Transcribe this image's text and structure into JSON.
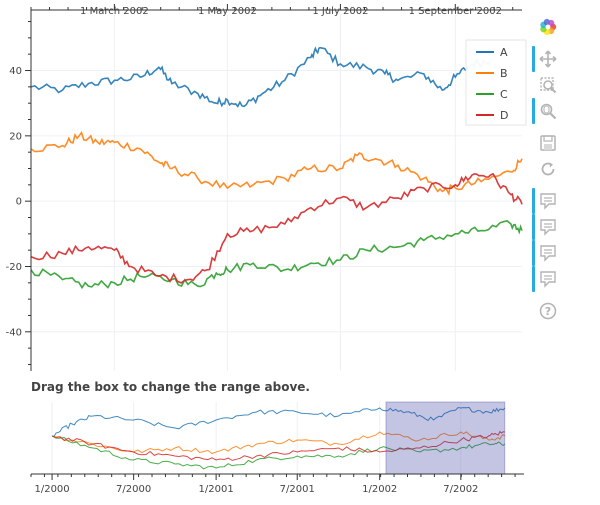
{
  "chart_data": [
    {
      "type": "line",
      "title": "",
      "x_range": [
        "2002-01-15",
        "2002-10-07"
      ],
      "ylim": [
        -52,
        57
      ],
      "x_ticks": [
        "2002-03-01",
        "2002-05-01",
        "2002-07-01",
        "2002-09-01"
      ],
      "x_tick_labels": [
        "1 March 2002",
        "1 May 2002",
        "1 July 2002",
        "1 September 2002"
      ],
      "x_axis_position": "top",
      "y_ticks": [
        -40,
        -20,
        0,
        20,
        40
      ],
      "y_tick_labels": [
        "-40",
        "-20",
        "0",
        "20",
        "40"
      ],
      "grid": true,
      "legend_position": "top-right",
      "series": [
        {
          "name": "A",
          "color": "#1f77b4",
          "points": [
            [
              "2002-01-15",
              35
            ],
            [
              "2002-02-01",
              34
            ],
            [
              "2002-02-15",
              36
            ],
            [
              "2002-03-01",
              37
            ],
            [
              "2002-03-15",
              38
            ],
            [
              "2002-03-25",
              41
            ],
            [
              "2002-04-01",
              36
            ],
            [
              "2002-04-15",
              33
            ],
            [
              "2002-04-25",
              30
            ],
            [
              "2002-05-01",
              31
            ],
            [
              "2002-05-10",
              29
            ],
            [
              "2002-05-20",
              33
            ],
            [
              "2002-06-01",
              37
            ],
            [
              "2002-06-15",
              44
            ],
            [
              "2002-06-20",
              47
            ],
            [
              "2002-07-01",
              42
            ],
            [
              "2002-07-15",
              41
            ],
            [
              "2002-07-25",
              39
            ],
            [
              "2002-08-01",
              37
            ],
            [
              "2002-08-15",
              39
            ],
            [
              "2002-08-25",
              34
            ],
            [
              "2002-09-01",
              38
            ],
            [
              "2002-09-10",
              42
            ],
            [
              "2002-09-20",
              43
            ]
          ]
        },
        {
          "name": "B",
          "color": "#ff7f0e",
          "points": [
            [
              "2002-01-15",
              16
            ],
            [
              "2002-02-01",
              17
            ],
            [
              "2002-02-10",
              20
            ],
            [
              "2002-02-20",
              18
            ],
            [
              "2002-03-01",
              18
            ],
            [
              "2002-03-15",
              16
            ],
            [
              "2002-03-25",
              12
            ],
            [
              "2002-04-01",
              10
            ],
            [
              "2002-04-15",
              7
            ],
            [
              "2002-05-01",
              4
            ],
            [
              "2002-05-15",
              5
            ],
            [
              "2002-06-01",
              7
            ],
            [
              "2002-06-15",
              10
            ],
            [
              "2002-07-01",
              10
            ],
            [
              "2002-07-10",
              14
            ],
            [
              "2002-07-20",
              13
            ],
            [
              "2002-08-01",
              11
            ],
            [
              "2002-08-15",
              7
            ],
            [
              "2002-08-25",
              3
            ],
            [
              "2002-09-01",
              4
            ],
            [
              "2002-09-15",
              6
            ],
            [
              "2002-10-01",
              9
            ],
            [
              "2002-10-07",
              13
            ]
          ]
        },
        {
          "name": "C",
          "color": "#2ca02c",
          "points": [
            [
              "2002-01-15",
              -21
            ],
            [
              "2002-02-01",
              -24
            ],
            [
              "2002-02-15",
              -26
            ],
            [
              "2002-03-01",
              -25
            ],
            [
              "2002-03-15",
              -23
            ],
            [
              "2002-04-01",
              -24
            ],
            [
              "2002-04-15",
              -26
            ],
            [
              "2002-04-25",
              -22
            ],
            [
              "2002-05-01",
              -21
            ],
            [
              "2002-05-15",
              -19
            ],
            [
              "2002-06-01",
              -21
            ],
            [
              "2002-06-15",
              -19
            ],
            [
              "2002-07-01",
              -18
            ],
            [
              "2002-07-15",
              -15
            ],
            [
              "2002-08-01",
              -14
            ],
            [
              "2002-08-15",
              -12
            ],
            [
              "2002-09-01",
              -10
            ],
            [
              "2002-09-15",
              -9
            ],
            [
              "2002-10-01",
              -7
            ],
            [
              "2002-10-07",
              -9
            ]
          ]
        },
        {
          "name": "D",
          "color": "#d62728",
          "points": [
            [
              "2002-01-15",
              -17
            ],
            [
              "2002-02-01",
              -16
            ],
            [
              "2002-02-15",
              -14
            ],
            [
              "2002-03-01",
              -15
            ],
            [
              "2002-03-10",
              -20
            ],
            [
              "2002-03-25",
              -23
            ],
            [
              "2002-04-10",
              -24
            ],
            [
              "2002-04-20",
              -21
            ],
            [
              "2002-05-01",
              -10
            ],
            [
              "2002-05-15",
              -9
            ],
            [
              "2002-06-01",
              -7
            ],
            [
              "2002-06-15",
              -2
            ],
            [
              "2002-07-01",
              1
            ],
            [
              "2002-07-15",
              -2
            ],
            [
              "2002-08-01",
              1
            ],
            [
              "2002-08-15",
              4
            ],
            [
              "2002-09-01",
              5
            ],
            [
              "2002-09-10",
              8
            ],
            [
              "2002-09-20",
              8
            ],
            [
              "2002-10-01",
              2
            ],
            [
              "2002-10-07",
              -1
            ]
          ]
        }
      ]
    },
    {
      "type": "line",
      "title": "Drag the box to change the range above.",
      "x_range": [
        "1999-11-15",
        "2002-11-10"
      ],
      "x_ticks": [
        "2000-01-01",
        "2000-07-01",
        "2001-01-01",
        "2001-07-01",
        "2002-01-01",
        "2002-07-01"
      ],
      "x_tick_labels": [
        "1/2000",
        "7/2000",
        "1/2001",
        "7/2001",
        "1/2002",
        "7/2002"
      ],
      "range_box": [
        "2002-01-15",
        "2002-10-07"
      ],
      "range_box_color": "#3a3fa0",
      "series": [
        {
          "name": "A",
          "color": "#1f77b4",
          "points": [
            [
              "2000-01-01",
              0
            ],
            [
              "2000-02-15",
              3
            ],
            [
              "2000-04-01",
              5
            ],
            [
              "2000-07-01",
              4
            ],
            [
              "2000-10-01",
              2
            ],
            [
              "2001-01-01",
              4
            ],
            [
              "2001-04-01",
              6
            ],
            [
              "2001-07-01",
              6
            ],
            [
              "2001-10-01",
              5
            ],
            [
              "2002-01-01",
              7
            ],
            [
              "2002-03-01",
              6
            ],
            [
              "2002-05-01",
              4
            ],
            [
              "2002-07-01",
              7
            ],
            [
              "2002-09-01",
              6
            ],
            [
              "2002-10-07",
              7
            ]
          ]
        },
        {
          "name": "B",
          "color": "#ff7f0e",
          "points": [
            [
              "2000-01-01",
              0
            ],
            [
              "2000-04-01",
              -2
            ],
            [
              "2000-07-01",
              -4
            ],
            [
              "2000-10-01",
              -3
            ],
            [
              "2001-01-01",
              -4
            ],
            [
              "2001-04-01",
              -2
            ],
            [
              "2001-07-01",
              -1
            ],
            [
              "2001-10-01",
              -2
            ],
            [
              "2002-01-01",
              1
            ],
            [
              "2002-04-01",
              -1
            ],
            [
              "2002-07-01",
              1
            ],
            [
              "2002-09-01",
              -1
            ],
            [
              "2002-10-07",
              0
            ]
          ]
        },
        {
          "name": "C",
          "color": "#2ca02c",
          "points": [
            [
              "2000-01-01",
              0
            ],
            [
              "2000-04-01",
              -3
            ],
            [
              "2000-07-01",
              -6
            ],
            [
              "2000-10-01",
              -7
            ],
            [
              "2001-01-01",
              -8
            ],
            [
              "2001-04-01",
              -6
            ],
            [
              "2001-07-01",
              -5
            ],
            [
              "2001-10-01",
              -5
            ],
            [
              "2002-01-01",
              -3
            ],
            [
              "2002-04-01",
              -4
            ],
            [
              "2002-07-01",
              -3
            ],
            [
              "2002-09-01",
              -2
            ],
            [
              "2002-10-07",
              -2
            ]
          ]
        },
        {
          "name": "D",
          "color": "#d62728",
          "points": [
            [
              "2000-01-01",
              0
            ],
            [
              "2000-04-01",
              -2
            ],
            [
              "2000-07-01",
              -4
            ],
            [
              "2000-10-01",
              -5
            ],
            [
              "2001-01-01",
              -6
            ],
            [
              "2001-04-01",
              -5
            ],
            [
              "2001-07-01",
              -4
            ],
            [
              "2001-10-01",
              -3
            ],
            [
              "2002-01-01",
              -4
            ],
            [
              "2002-04-01",
              -3
            ],
            [
              "2002-07-01",
              -1
            ],
            [
              "2002-09-01",
              0
            ],
            [
              "2002-10-07",
              1
            ]
          ]
        }
      ]
    }
  ],
  "toolbar": {
    "tools": [
      {
        "name": "bokeh-logo-icon",
        "active": false
      },
      {
        "name": "pan-icon",
        "active": true
      },
      {
        "name": "box-zoom-icon",
        "active": false
      },
      {
        "name": "wheel-zoom-icon",
        "active": true
      },
      {
        "name": "save-icon",
        "active": false
      },
      {
        "name": "reset-icon",
        "active": false
      },
      {
        "name": "hover-icon",
        "active": true
      },
      {
        "name": "hover-icon",
        "active": true
      },
      {
        "name": "hover-icon",
        "active": true
      },
      {
        "name": "hover-icon",
        "active": true
      },
      {
        "name": "help-icon",
        "active": false
      }
    ]
  }
}
